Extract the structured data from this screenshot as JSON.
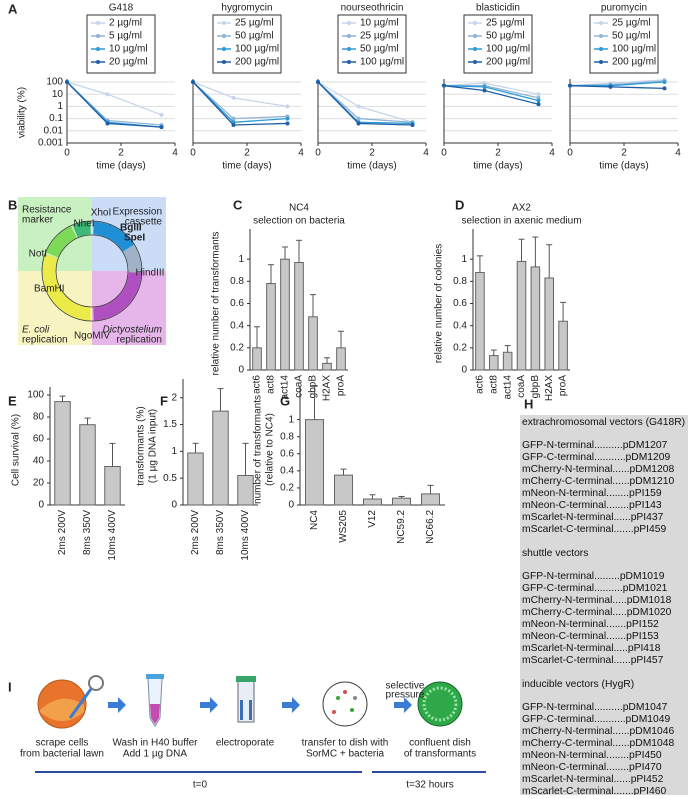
{
  "panel_letters": [
    "A",
    "B",
    "C",
    "D",
    "E",
    "F",
    "G",
    "H",
    "I"
  ],
  "chart_data": [
    {
      "type": "line",
      "title": "G418",
      "ylabel": "viability (%)",
      "xlabel": "time (days)",
      "x": [
        0,
        1.5,
        3.5
      ],
      "xlim": [
        0,
        4
      ],
      "xticks": [
        0,
        2,
        4
      ],
      "ylim": [
        0.001,
        100
      ],
      "yticks": [
        0.001,
        0.01,
        0.1,
        1,
        10,
        100
      ],
      "log": true,
      "grid": true,
      "series": [
        {
          "name": "2 µg/ml",
          "color": "#c5d6ea",
          "values": [
            100,
            10,
            0.2
          ]
        },
        {
          "name": "5 µg/ml",
          "color": "#8fb4d8",
          "values": [
            100,
            0.07,
            0.03
          ]
        },
        {
          "name": "10 µg/ml",
          "color": "#2e9bd6",
          "values": [
            100,
            0.05,
            0.02
          ]
        },
        {
          "name": "20 µg/ml",
          "color": "#1f5fa8",
          "values": [
            100,
            0.04,
            0.02
          ]
        }
      ]
    },
    {
      "type": "line",
      "title": "hygromycin",
      "xlabel": "time (days)",
      "x": [
        0,
        1.5,
        3.5
      ],
      "xlim": [
        0,
        4
      ],
      "xticks": [
        0,
        2,
        4
      ],
      "ylim": [
        0.001,
        100
      ],
      "yticks": [
        0.001,
        0.01,
        0.1,
        1,
        10,
        100
      ],
      "log": true,
      "grid": true,
      "series": [
        {
          "name": "25 µg/ml",
          "color": "#c5d6ea",
          "values": [
            100,
            5,
            1
          ]
        },
        {
          "name": "50 µg/ml",
          "color": "#8fb4d8",
          "values": [
            100,
            0.1,
            0.15
          ]
        },
        {
          "name": "100 µg/ml",
          "color": "#2e9bd6",
          "values": [
            100,
            0.05,
            0.1
          ]
        },
        {
          "name": "200 µg/ml",
          "color": "#1f5fa8",
          "values": [
            100,
            0.03,
            0.04
          ]
        }
      ]
    },
    {
      "type": "line",
      "title": "nourseothricin",
      "xlabel": "time (days)",
      "x": [
        0,
        1.5,
        3.5
      ],
      "xlim": [
        0,
        4
      ],
      "xticks": [
        0,
        2,
        4
      ],
      "ylim": [
        0.001,
        100
      ],
      "yticks": [
        0.001,
        0.01,
        0.1,
        1,
        10,
        100
      ],
      "log": true,
      "grid": true,
      "series": [
        {
          "name": "10 µg/ml",
          "color": "#c5d6ea",
          "values": [
            100,
            1,
            0.05
          ]
        },
        {
          "name": "25 µg/ml",
          "color": "#8fb4d8",
          "values": [
            100,
            0.1,
            0.05
          ]
        },
        {
          "name": "50 µg/ml",
          "color": "#2e9bd6",
          "values": [
            100,
            0.05,
            0.04
          ]
        },
        {
          "name": "100 µg/ml",
          "color": "#1f5fa8",
          "values": [
            100,
            0.04,
            0.03
          ]
        }
      ]
    },
    {
      "type": "line",
      "title": "blasticidin",
      "xlabel": "time (days)",
      "x": [
        0,
        1.5,
        3.5
      ],
      "xlim": [
        0,
        4
      ],
      "xticks": [
        0,
        2,
        4
      ],
      "ylim": [
        0.001,
        100
      ],
      "yticks": [
        0.001,
        0.01,
        0.1,
        1,
        10,
        100
      ],
      "log": true,
      "grid": true,
      "series": [
        {
          "name": "25 µg/ml",
          "color": "#c5d6ea",
          "values": [
            50,
            80,
            10
          ]
        },
        {
          "name": "50 µg/ml",
          "color": "#8fb4d8",
          "values": [
            50,
            50,
            5
          ]
        },
        {
          "name": "100 µg/ml",
          "color": "#2e9bd6",
          "values": [
            50,
            40,
            3
          ]
        },
        {
          "name": "200 µg/ml",
          "color": "#1f5fa8",
          "values": [
            50,
            20,
            1.5
          ]
        }
      ]
    },
    {
      "type": "line",
      "title": "puromycin",
      "xlabel": "time (days)",
      "x": [
        0,
        1.5,
        3.5
      ],
      "xlim": [
        0,
        4
      ],
      "xticks": [
        0,
        2,
        4
      ],
      "ylim": [
        0.001,
        100
      ],
      "yticks": [
        0.001,
        0.01,
        0.1,
        1,
        10,
        100
      ],
      "log": true,
      "grid": true,
      "series": [
        {
          "name": "25 µg/ml",
          "color": "#c5d6ea",
          "values": [
            50,
            80,
            150
          ]
        },
        {
          "name": "50 µg/ml",
          "color": "#8fb4d8",
          "values": [
            50,
            60,
            120
          ]
        },
        {
          "name": "100 µg/ml",
          "color": "#2e9bd6",
          "values": [
            50,
            50,
            100
          ]
        },
        {
          "name": "200 µg/ml",
          "color": "#1f5fa8",
          "values": [
            50,
            40,
            30
          ]
        }
      ]
    },
    {
      "type": "bar",
      "title": "NC4",
      "subtitle": "selection on bacteria",
      "ylabel": "relative number of transformants",
      "categories": [
        "act6",
        "act8",
        "act14",
        "coaA",
        "gbpB",
        "H2AX",
        "proA"
      ],
      "values": [
        0.2,
        0.78,
        1,
        0.97,
        0.48,
        0.06,
        0.2
      ],
      "errors": [
        0.19,
        0.17,
        0.11,
        0.2,
        0.2,
        0.05,
        0.15
      ],
      "ylim": [
        0,
        1.2
      ],
      "yticks": [
        0,
        0.2,
        0.4,
        0.6,
        0.8,
        1
      ],
      "color": "#c8c8c8"
    },
    {
      "type": "bar",
      "title": "AX2",
      "subtitle": "selection in axenic medium",
      "ylabel": "relative number of colonies",
      "categories": [
        "act6",
        "act8",
        "act14",
        "coaA",
        "gbpB",
        "H2AX",
        "proA"
      ],
      "values": [
        0.88,
        0.13,
        0.16,
        0.98,
        0.93,
        0.83,
        0.44
      ],
      "errors": [
        0.15,
        0.05,
        0.06,
        0.2,
        0.27,
        0.3,
        0.17
      ],
      "ylim": [
        0,
        1.2
      ],
      "yticks": [
        0,
        0.2,
        0.4,
        0.6,
        0.8,
        1
      ],
      "color": "#c8c8c8"
    },
    {
      "type": "bar",
      "ylabel": "Cell survival (%)",
      "categories": [
        "2ms 200V",
        "8ms 350V",
        "10ms 400V"
      ],
      "values": [
        94,
        73,
        35
      ],
      "errors": [
        5,
        6,
        21
      ],
      "ylim": [
        0,
        100
      ],
      "yticks": [
        0,
        20,
        40,
        60,
        80,
        100
      ],
      "color": "#c8c8c8"
    },
    {
      "type": "bar",
      "ylabel": [
        "transformants (%)",
        "(1 µg DNA input)"
      ],
      "categories": [
        "2ms 200V",
        "8ms 350V",
        "10ms 400V"
      ],
      "values": [
        0.97,
        1.75,
        0.55
      ],
      "errors": [
        0.18,
        0.42,
        0.6
      ],
      "ylim": [
        0,
        2.2
      ],
      "yticks": [
        0,
        0.5,
        1,
        1.5,
        2
      ],
      "color": "#c8c8c8"
    },
    {
      "type": "bar",
      "ylabel": [
        "number of transformants",
        "(relative to NC4)"
      ],
      "categories": [
        "NC4",
        "WS205",
        "V12",
        "NC59.2",
        "NC66.2"
      ],
      "values": [
        1,
        0.35,
        0.07,
        0.08,
        0.13
      ],
      "errors": [
        0.4,
        0.07,
        0.05,
        0.02,
        0.1
      ],
      "ylim": [
        0,
        1.3
      ],
      "yticks": [
        0,
        0.2,
        0.4,
        0.6,
        0.8,
        1
      ],
      "color": "#c8c8c8"
    }
  ],
  "plasmid": {
    "quadrants": [
      [
        "Resistance",
        "marker"
      ],
      [
        "Expression",
        "cassette"
      ],
      [
        "E. coli",
        "replication"
      ],
      [
        "Dictyostelium",
        "replication"
      ]
    ],
    "sites": [
      "XhoI",
      "NheI",
      "NotI",
      "BamHI",
      "BglII",
      "SpeI",
      "HindIII",
      "NgoMIV"
    ]
  },
  "vectors": [
    {
      "title": "extrachromosomal vectors (G418R)",
      "lines": [
        "GFP-N-terminal..........pDM1207",
        "GFP-C-terminal...........pDM1209",
        "mCherry-N-terminal......pDM1208",
        "mCherry-C-terminal......pDM1210",
        "mNeon-N-terminal........pPI159",
        "mNeon-C-terminal........pPI143",
        "mScarlet-N-terminal......pPI437",
        "mScarlet-C-terminal.......pPI459"
      ]
    },
    {
      "title": "shuttle vectors",
      "lines": [
        "GFP-N-terminal.........pDM1019",
        "GFP-C-terminal..........pDM1021",
        "mCherry-N-terminal.....pDM1018",
        "mCherry-C-terminal.....pDM1020",
        "mNeon-N-terminal.......pPI152",
        "mNeon-C-terminal.......pPI153",
        "mScarlet-N-terminal.....pPI418",
        "mScarlet-C-terminal......pPI457"
      ]
    },
    {
      "title": "inducible vectors (HygR)",
      "lines": [
        "GFP-N-terminal..........pDM1047",
        "GFP-C-terminal...........pDM1049",
        "mCherry-N-terminal......pDM1046",
        "mCherry-C-terminal......pDM1048",
        "mNeon-N-terminal........pPI450",
        "mNeon-C-terminal........pPI470",
        "mScarlet-N-terminal......pPI452",
        "mScarlet-C-terminal.......pPI460"
      ]
    }
  ],
  "workflow": {
    "steps": [
      [
        "scrape cells",
        "from bacterial lawn"
      ],
      [
        "Wash in H40 buffer",
        "Add 1 µg DNA"
      ],
      [
        "electroporate"
      ],
      [
        "transfer to dish with",
        "SorMC + bacteria"
      ],
      [
        "confluent dish",
        "of transformants"
      ]
    ],
    "arrow_label": [
      "selective",
      "pressure"
    ],
    "times": [
      "t=0",
      "t=32 hours"
    ]
  }
}
